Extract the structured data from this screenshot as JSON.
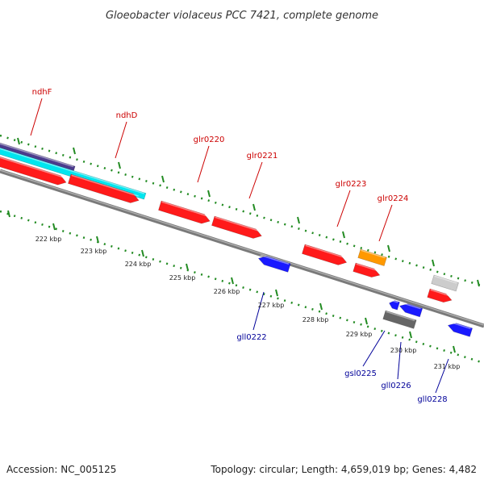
{
  "title": "Gloeobacter violaceus PCC 7421, complete genome",
  "accession": "Accession: NC_005125",
  "topology": "Topology: circular; Length: 4,659,019 bp; Genes: 4,482",
  "colors": {
    "forward_label": "#cc0000",
    "reverse_label": "#000099",
    "ticks": "#228B22",
    "backbone": "#7a7a7a",
    "cds": "#ff1a1a",
    "reverse_cds": "#1a1aff",
    "trna": "#ff9900",
    "purple": "#4b3b8c",
    "cyan": "#00e5ee",
    "grey_light": "#cccccc",
    "grey_dark": "#666666"
  },
  "kbp_labels": [
    "222 kbp",
    "223 kbp",
    "224 kbp",
    "225 kbp",
    "226 kbp",
    "227 kbp",
    "228 kbp",
    "229 kbp",
    "230 kbp",
    "231 kbp"
  ],
  "forward_labels": [
    "ndhF",
    "ndhD",
    "glr0220",
    "glr0221",
    "glr0223",
    "glr0224"
  ],
  "reverse_labels": [
    "gll0222",
    "gsl0225",
    "gll0226",
    "gll0228"
  ]
}
